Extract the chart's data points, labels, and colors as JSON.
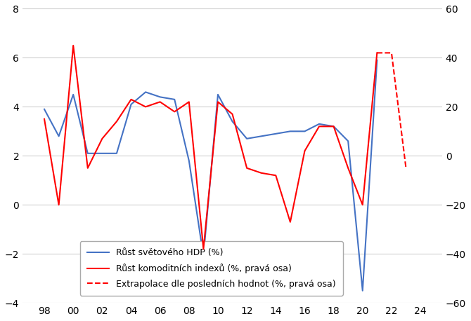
{
  "years_hdp": [
    1998,
    1999,
    2000,
    2001,
    2002,
    2003,
    2004,
    2005,
    2006,
    2007,
    2008,
    2009,
    2010,
    2011,
    2012,
    2013,
    2014,
    2015,
    2016,
    2017,
    2018,
    2019,
    2020,
    2021
  ],
  "hdp": [
    3.9,
    2.8,
    4.5,
    2.1,
    2.1,
    2.1,
    4.1,
    4.6,
    4.4,
    4.3,
    1.8,
    -2.1,
    4.5,
    3.4,
    2.7,
    2.8,
    2.9,
    3.0,
    3.0,
    3.3,
    3.2,
    2.6,
    -3.5,
    5.9
  ],
  "years_commodity": [
    1998,
    1999,
    2000,
    2001,
    2002,
    2003,
    2004,
    2005,
    2006,
    2007,
    2008,
    2009,
    2010,
    2011,
    2012,
    2013,
    2014,
    2015,
    2016,
    2017,
    2018,
    2019,
    2020,
    2021
  ],
  "commodity": [
    15.0,
    -20.0,
    45.0,
    -5.0,
    7.0,
    14.0,
    23.0,
    20.0,
    22.0,
    18.0,
    22.0,
    -38.0,
    22.0,
    17.0,
    -5.0,
    -7.0,
    -8.0,
    -27.0,
    2.0,
    12.0,
    12.0,
    -5.0,
    -20.0,
    42.0
  ],
  "years_extrap": [
    2021,
    2022,
    2023
  ],
  "extrap": [
    42.0,
    42.0,
    -5.0
  ],
  "color_hdp": "#4472C4",
  "color_commodity": "#FF0000",
  "color_extrap": "#FF0000",
  "left_ylim": [
    -4,
    8
  ],
  "right_ylim": [
    -60,
    60
  ],
  "left_yticks": [
    -4,
    -2,
    0,
    2,
    4,
    6,
    8
  ],
  "right_yticks": [
    -60,
    -40,
    -20,
    0,
    20,
    40,
    60
  ],
  "xlim": [
    96.5,
    125.5
  ],
  "xticks": [
    98,
    100,
    102,
    104,
    106,
    108,
    110,
    112,
    114,
    116,
    118,
    120,
    122,
    124
  ],
  "xtick_labels": [
    "98",
    "00",
    "02",
    "04",
    "06",
    "08",
    "10",
    "12",
    "14",
    "16",
    "18",
    "20",
    "22",
    "24"
  ],
  "legend_hdp": "Růst světového HDP (%)",
  "legend_commodity": "Růst komoditních indexů (%, pravá osa)",
  "legend_extrap": "Extrapolace dle posledních hodnot (%, pravá osa)",
  "background_color": "#FFFFFF",
  "grid_color": "#D0D0D0",
  "linewidth": 1.5
}
